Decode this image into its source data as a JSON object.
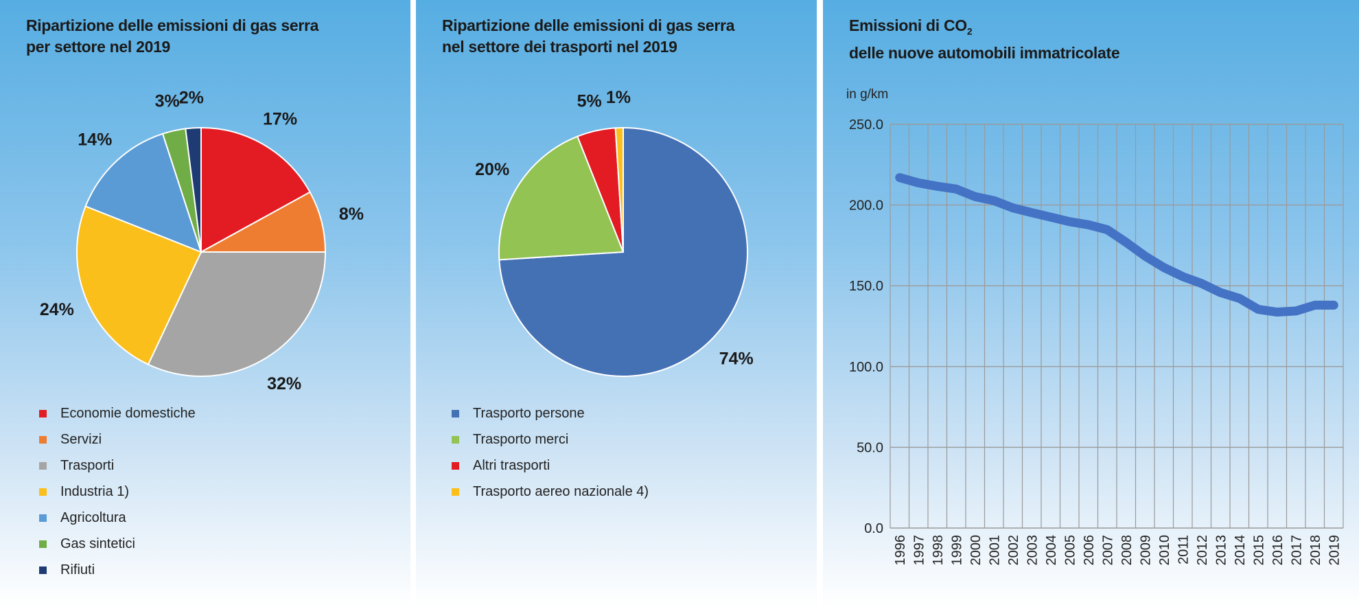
{
  "chart_data": [
    {
      "type": "pie",
      "title": "Ripartizione delle emissioni di gas serra per settore nel 2019",
      "title_lines": [
        "Ripartizione delle emissioni di gas serra",
        "per settore nel 2019"
      ],
      "categories": [
        "Economie domestiche",
        "Servizi",
        "Trasporti",
        "Industria 1)",
        "Agricoltura",
        "Gas sintetici",
        "Rifiuti"
      ],
      "values": [
        17,
        8,
        32,
        24,
        14,
        3,
        2
      ],
      "labels": [
        "17%",
        "8%",
        "32%",
        "24%",
        "14%",
        "3%",
        "2%"
      ],
      "colors": [
        "#e31b23",
        "#ee7d31",
        "#a5a5a5",
        "#fbbf1b",
        "#5b9bd5",
        "#70ad47",
        "#1f3b73"
      ],
      "legend_placement": "bottom"
    },
    {
      "type": "pie",
      "title": "Ripartizione delle emissioni di gas serra nel settore dei trasporti nel 2019",
      "title_lines": [
        "Ripartizione delle emissioni di gas serra",
        "nel settore dei trasporti nel 2019"
      ],
      "categories": [
        "Trasporto persone",
        "Trasporto merci",
        "Altri trasporti",
        "Trasporto aereo nazionale 4)"
      ],
      "values": [
        74,
        20,
        5,
        1
      ],
      "labels": [
        "74%",
        "20%",
        "5%",
        "1%"
      ],
      "colors": [
        "#4470b4",
        "#92c353",
        "#e31b23",
        "#fbbf1b"
      ],
      "legend_placement": "bottom"
    },
    {
      "type": "line",
      "title": "Emissioni di CO2 delle nuove automobili immatricolate",
      "title_main": "Emissioni di CO",
      "title_sub": "2",
      "title_line2": "delle nuove automobili immatricolate",
      "ylabel": "in g/km",
      "xlabel": "",
      "ylim": [
        0,
        250
      ],
      "yticks": [
        "0.0",
        "50.0",
        "100.0",
        "150.0",
        "200.0",
        "250.0"
      ],
      "ytick_values": [
        0,
        50,
        100,
        150,
        200,
        250
      ],
      "x": [
        "1996",
        "1997",
        "1998",
        "1999",
        "2000",
        "2001",
        "2002",
        "2003",
        "2004",
        "2005",
        "2006",
        "2007",
        "2008",
        "2009",
        "2010",
        "2011",
        "2012",
        "2013",
        "2014",
        "2015",
        "2016",
        "2017",
        "2018",
        "2019"
      ],
      "series": [
        {
          "name": "CO2 g/km",
          "color": "#4472c4",
          "values": [
            217.0,
            213.7,
            211.6,
            209.9,
            205.2,
            202.7,
            198.2,
            195.3,
            192.5,
            189.7,
            187.8,
            184.7,
            176.9,
            168.4,
            161.3,
            155.7,
            151.4,
            145.8,
            142.2,
            135.4,
            133.7,
            134.4,
            138.0,
            138.0
          ]
        }
      ],
      "grid": true
    }
  ]
}
